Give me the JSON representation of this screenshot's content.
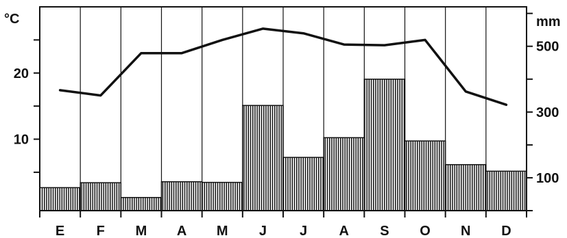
{
  "chart_data": {
    "type": "bar",
    "categories": [
      "E",
      "F",
      "M",
      "A",
      "M",
      "J",
      "J",
      "A",
      "S",
      "O",
      "N",
      "D"
    ],
    "left_axis": {
      "unit_label": "°C",
      "ticks": [
        "10",
        "20"
      ],
      "ylim": [
        -0.8,
        30
      ]
    },
    "right_axis": {
      "unit_label": "mm",
      "ticks": [
        "100",
        "300",
        "500"
      ],
      "ylim": [
        0,
        620
      ]
    },
    "series": [
      {
        "type": "bar",
        "axis": "right",
        "values": [
          70,
          85,
          40,
          88,
          86,
          320,
          162,
          222,
          400,
          212,
          140,
          120
        ]
      },
      {
        "type": "line",
        "axis": "left",
        "values": [
          17.4,
          16.6,
          23.0,
          23.0,
          25.0,
          26.7,
          26.0,
          24.3,
          24.2,
          25.0,
          17.2,
          15.2
        ]
      }
    ],
    "grid": false,
    "legend": "none"
  }
}
